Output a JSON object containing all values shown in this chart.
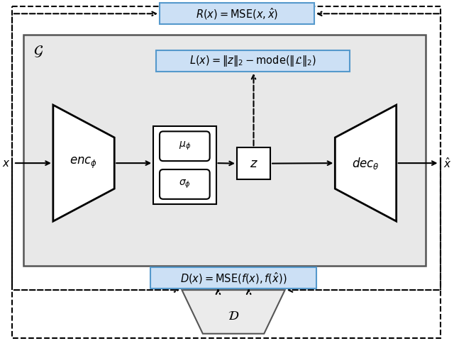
{
  "fig_width": 6.4,
  "fig_height": 4.98,
  "bg_color": "#ffffff",
  "gray_box_color": "#e8e8e8",
  "blue_box_color": "#cce0f5",
  "blue_box_edge": "#5599cc",
  "box_edge_color": "#111111",
  "dashed_color": "#222222",
  "title_R": "$R(x) = \\mathrm{MSE}(x, \\hat{x})$",
  "title_L": "$L(x) = \\|z\\|_2 - \\mathrm{mode}(\\|\\mathcal{L}\\|_2)$",
  "title_D": "$D(x) = \\mathrm{MSE}(f(x), f(\\hat{x}))$",
  "label_G": "$\\mathcal{G}$",
  "label_enc": "$enc_\\phi$",
  "label_dec": "$dec_\\theta$",
  "label_mu": "$\\mu_\\phi$",
  "label_sigma": "$\\sigma_\\phi$",
  "label_z": "$z$",
  "label_D": "$\\mathcal{D}$",
  "label_x": "$x$",
  "label_xhat": "$\\hat{x}$"
}
